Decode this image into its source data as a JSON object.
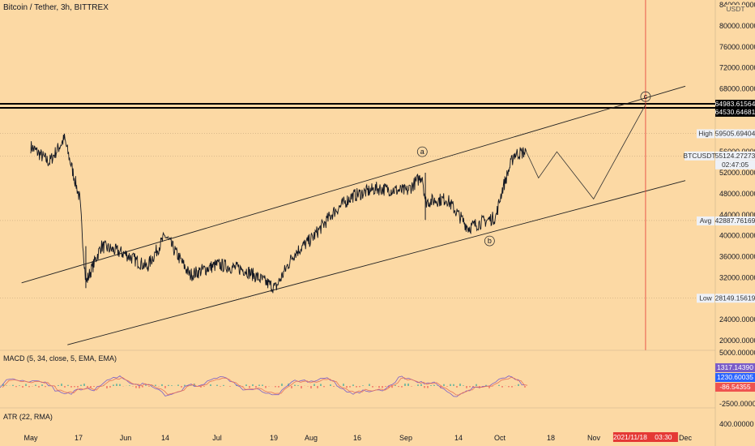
{
  "header": {
    "title": "Bitcoin / Tether, 3h, BITTREX",
    "currency": "USDT"
  },
  "colors": {
    "background": "#fcd9a4",
    "price": "#131722",
    "macd_line": "#7a5cc8",
    "signal_line": "#e8735a",
    "up": "#26a69a",
    "down": "#ef5350",
    "marker_line": "#e53935"
  },
  "chart_data": {
    "type": "line",
    "title": "Bitcoin / Tether, 3h, BITTREX",
    "ylim": [
      20000,
      84000
    ],
    "y_ticks": [
      "84000.00000",
      "80000.00000",
      "76000.00000",
      "72000.00000",
      "68000.00000",
      "56000.00000",
      "52000.00000",
      "48000.00000",
      "44000.00000",
      "40000.00000",
      "36000.00000",
      "32000.00000",
      "24000.00000",
      "20000.00000"
    ],
    "x_ticks": [
      "May",
      "17",
      "Jun",
      "14",
      "Jul",
      "19",
      "Aug",
      "16",
      "Sep",
      "14",
      "Oct",
      "18",
      "Nov",
      "Dec"
    ],
    "series": [
      {
        "x": [
          "2021-05-01",
          "2021-05-07",
          "2021-05-12",
          "2021-05-17",
          "2021-05-19",
          "2021-05-24",
          "2021-06-01",
          "2021-06-08",
          "2021-06-14",
          "2021-06-22",
          "2021-07-01",
          "2021-07-10",
          "2021-07-20",
          "2021-07-26",
          "2021-08-01",
          "2021-08-08",
          "2021-08-14",
          "2021-08-22",
          "2021-09-01",
          "2021-09-06",
          "2021-09-07",
          "2021-09-14",
          "2021-09-21",
          "2021-09-25",
          "2021-09-30",
          "2021-10-02",
          "2021-10-06",
          "2021-10-10"
        ],
        "y": [
          57000,
          54000,
          58500,
          47000,
          31000,
          38000,
          36500,
          34000,
          40000,
          32500,
          34500,
          33500,
          30000,
          36500,
          39500,
          44500,
          47500,
          49000,
          48500,
          51500,
          46500,
          47000,
          41500,
          42500,
          43500,
          48500,
          55500,
          56000
        ]
      }
    ],
    "projection": {
      "x": [
        "2021-10-10",
        "2021-10-14",
        "2021-10-20",
        "2021-11-01",
        "2021-11-18"
      ],
      "y": [
        56000,
        51000,
        56000,
        47000,
        65000
      ]
    },
    "channel": {
      "upper": {
        "x": [
          "2021-04-28",
          "2021-12-01"
        ],
        "y": [
          31000,
          68500
        ]
      },
      "lower": {
        "x": [
          "2021-05-13",
          "2021-12-01"
        ],
        "y": [
          19200,
          50500
        ]
      }
    },
    "horizontal_levels": [
      64983.61564,
      64530.64681
    ],
    "stats": {
      "high": 59505.69404,
      "last": 55124.27273,
      "avg": 42887.76169,
      "low": 28149.15619
    },
    "wave_labels": [
      {
        "label": "a",
        "x": "2021-09-06",
        "y": 56000
      },
      {
        "label": "b",
        "x": "2021-09-28",
        "y": 39000
      },
      {
        "label": "c",
        "x": "2021-11-18",
        "y": 66500
      }
    ],
    "marker_date": "2021-11-18"
  },
  "price_labels": {
    "currency": "USDT",
    "level1": "64983.61564",
    "level2": "64530.64681",
    "high_tag": "High",
    "high": "59505.69404",
    "symbol": "BTCUSDT",
    "last": "55124.27273",
    "countdown": "02:47:05",
    "avg_tag": "Avg",
    "avg": "42887.76169",
    "low_tag": "Low",
    "low": "28149.15619"
  },
  "macd": {
    "label": "MACD (5, 34, close, 5, EMA, EMA)",
    "value1": "1317.14390",
    "value2": "1230.60035",
    "value3": "-86.54355",
    "ticks": [
      "5000.00000",
      "-2500.00000"
    ]
  },
  "atr": {
    "label": "ATR (22, RMA)",
    "tick": "400.00000"
  },
  "time_marker": {
    "date": "2021/11/18",
    "time": "03:30"
  }
}
